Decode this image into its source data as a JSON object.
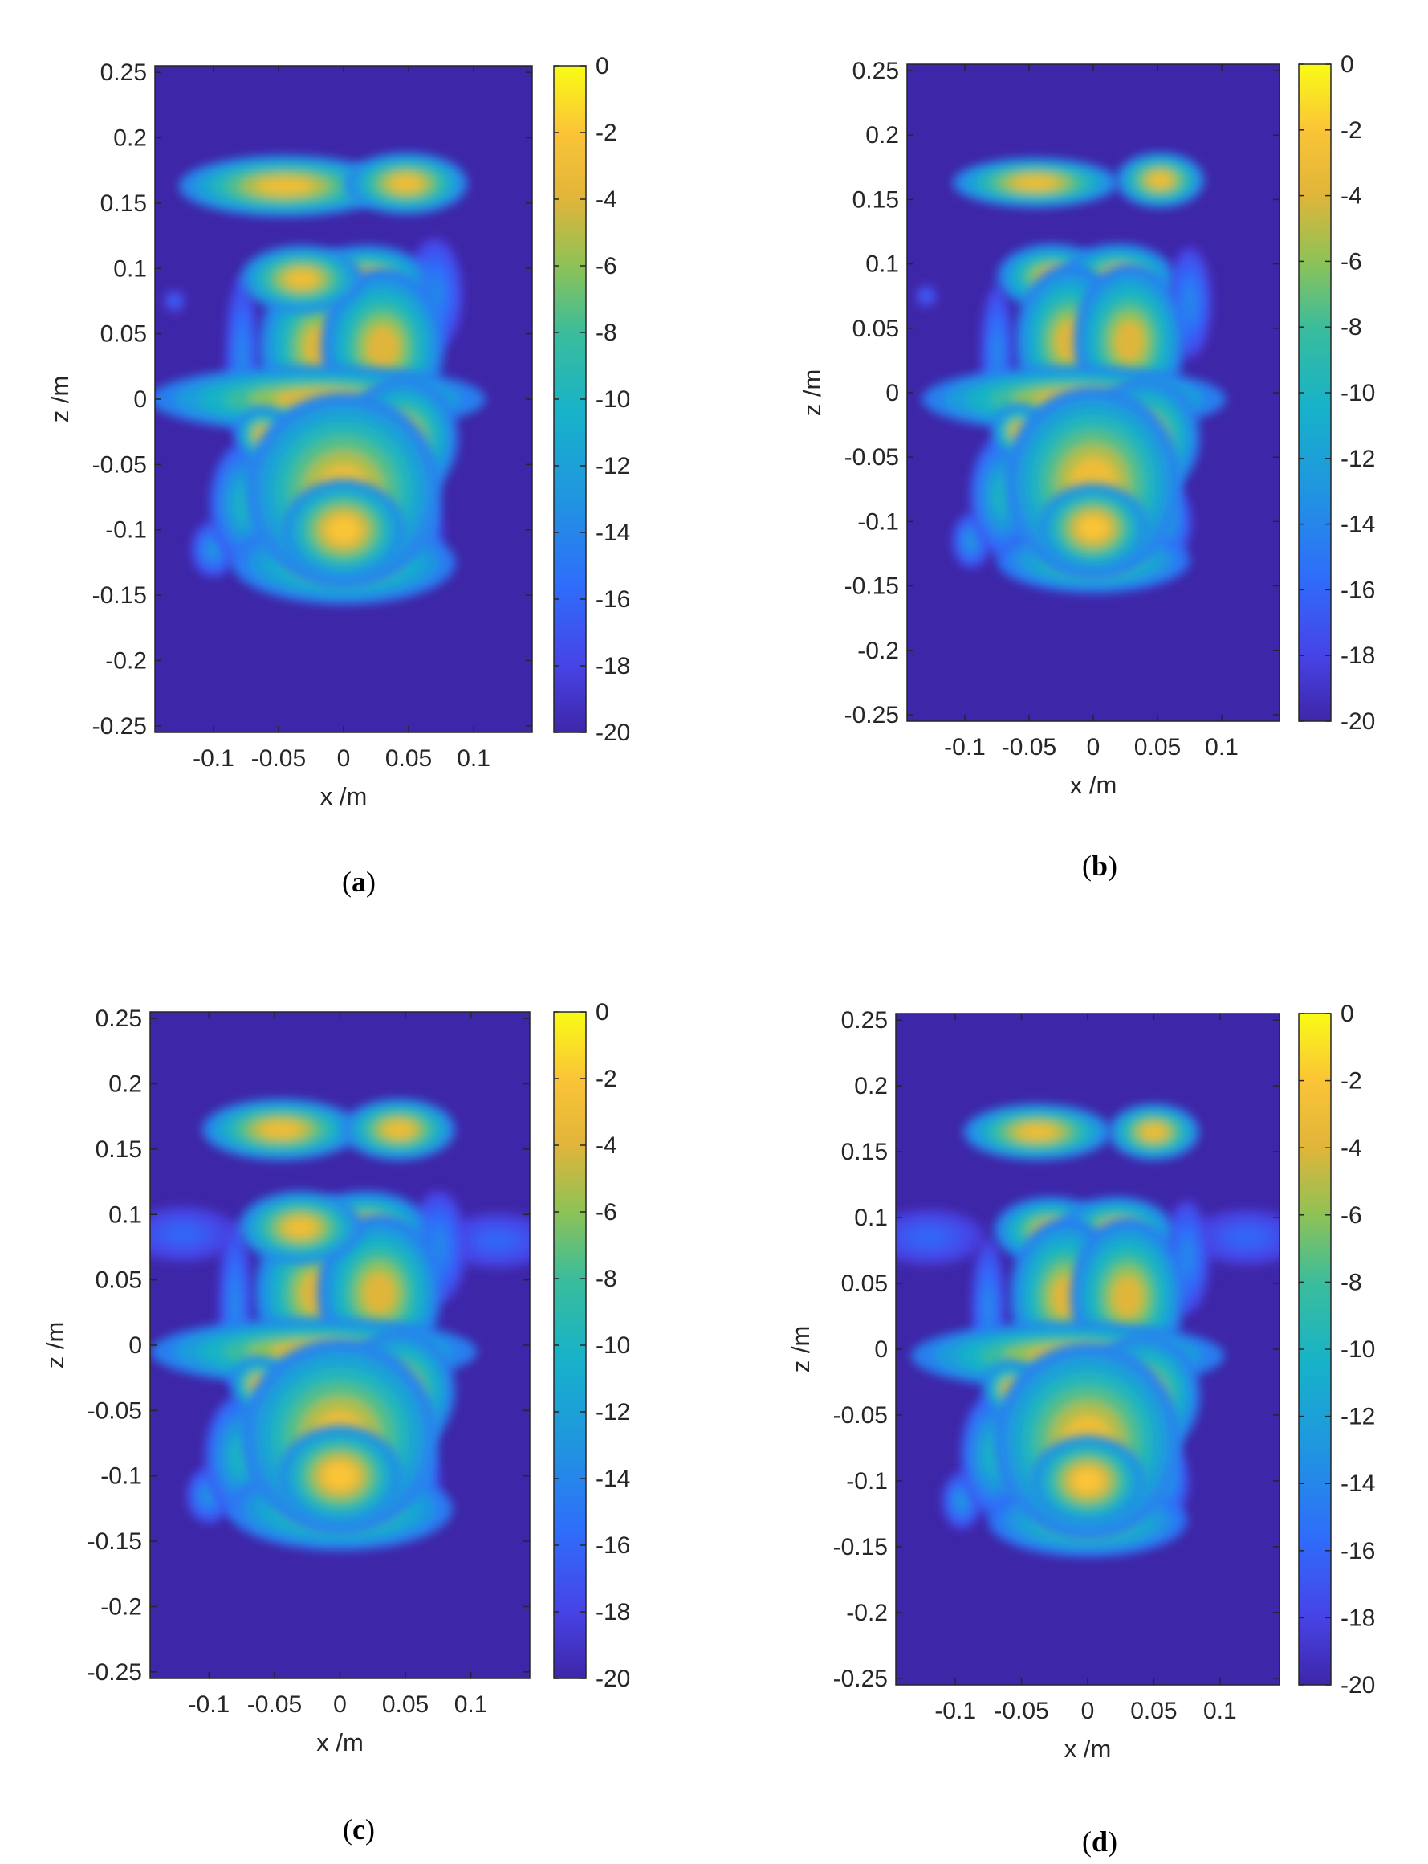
{
  "figure": {
    "panels": [
      {
        "caption_letter": "a"
      },
      {
        "caption_letter": "b"
      },
      {
        "caption_letter": "c"
      },
      {
        "caption_letter": "d"
      }
    ]
  },
  "chart_data": [
    {
      "type": "heatmap",
      "panel": "a",
      "xlabel": "x /m",
      "ylabel": "z /m",
      "xlim": [
        -0.145,
        0.145
      ],
      "ylim": [
        -0.255,
        0.255
      ],
      "x_ticks": [
        -0.1,
        -0.05,
        0,
        0.05,
        0.1
      ],
      "x_tick_labels": [
        "-0.1",
        "-0.05",
        "0",
        "0.05",
        "0.1"
      ],
      "y_ticks": [
        0.25,
        0.2,
        0.15,
        0.1,
        0.05,
        0,
        -0.05,
        -0.1,
        -0.15,
        -0.2,
        -0.25
      ],
      "y_tick_labels": [
        "0.25",
        "0.2",
        "0.15",
        "0.1",
        "0.05",
        "0",
        "-0.05",
        "-0.1",
        "-0.15",
        "-0.2",
        "-0.25"
      ],
      "colorbar": {
        "range": [
          -20,
          0
        ],
        "ticks": [
          0,
          -2,
          -4,
          -6,
          -8,
          -10,
          -12,
          -14,
          -16,
          -18,
          -20
        ],
        "tick_labels": [
          "0",
          "-2",
          "-4",
          "-6",
          "-8",
          "-10",
          "-12",
          "-14",
          "-16",
          "-18",
          "-20"
        ],
        "colormap": "parula"
      },
      "background_value": -20,
      "blobs": [
        {
          "x": -0.045,
          "z": 0.163,
          "sx": 0.038,
          "sz": 0.011,
          "level": -3
        },
        {
          "x": 0.048,
          "z": 0.165,
          "sx": 0.022,
          "sz": 0.011,
          "level": -3
        },
        {
          "x": -0.032,
          "z": 0.092,
          "sx": 0.022,
          "sz": 0.012,
          "level": -3
        },
        {
          "x": 0.018,
          "z": 0.092,
          "sx": 0.022,
          "sz": 0.012,
          "level": -4
        },
        {
          "x": -0.018,
          "z": 0.04,
          "sx": 0.022,
          "sz": 0.028,
          "level": -4
        },
        {
          "x": 0.03,
          "z": 0.04,
          "sx": 0.022,
          "sz": 0.028,
          "level": -4
        },
        {
          "x": -0.02,
          "z": 0.0,
          "sx": 0.06,
          "sz": 0.012,
          "level": -4
        },
        {
          "x": -0.062,
          "z": -0.027,
          "sx": 0.01,
          "sz": 0.01,
          "level": -4
        },
        {
          "x": 0.0,
          "z": -0.07,
          "sx": 0.035,
          "sz": 0.035,
          "level": -3
        },
        {
          "x": 0.045,
          "z": -0.03,
          "sx": 0.02,
          "sz": 0.022,
          "level": -4
        },
        {
          "x": 0.0,
          "z": -0.1,
          "sx": 0.022,
          "sz": 0.018,
          "level": -2
        },
        {
          "x": 0.0,
          "z": -0.125,
          "sx": 0.04,
          "sz": 0.015,
          "level": -5
        },
        {
          "x": -0.075,
          "z": -0.08,
          "sx": 0.013,
          "sz": 0.022,
          "level": -10
        },
        {
          "x": -0.1,
          "z": -0.115,
          "sx": 0.008,
          "sz": 0.01,
          "level": -13
        },
        {
          "x": -0.078,
          "z": 0.03,
          "sx": 0.006,
          "sz": 0.03,
          "level": -14
        },
        {
          "x": -0.13,
          "z": 0.075,
          "sx": 0.004,
          "sz": 0.004,
          "level": -16
        },
        {
          "x": 0.07,
          "z": 0.08,
          "sx": 0.01,
          "sz": 0.02,
          "level": -14
        },
        {
          "x": 0.055,
          "z": -0.1,
          "sx": 0.01,
          "sz": 0.015,
          "level": -12
        }
      ]
    },
    {
      "type": "heatmap",
      "panel": "b",
      "xlabel": "x /m",
      "ylabel": "z /m",
      "xlim": [
        -0.145,
        0.145
      ],
      "ylim": [
        -0.255,
        0.255
      ],
      "x_ticks": [
        -0.1,
        -0.05,
        0,
        0.05,
        0.1
      ],
      "x_tick_labels": [
        "-0.1",
        "-0.05",
        "0",
        "0.05",
        "0.1"
      ],
      "y_ticks": [
        0.25,
        0.2,
        0.15,
        0.1,
        0.05,
        0,
        -0.05,
        -0.1,
        -0.15,
        -0.2,
        -0.25
      ],
      "y_tick_labels": [
        "0.25",
        "0.2",
        "0.15",
        "0.1",
        "0.05",
        "0",
        "-0.05",
        "-0.1",
        "-0.15",
        "-0.2",
        "-0.25"
      ],
      "colorbar": {
        "range": [
          -20,
          0
        ],
        "ticks": [
          0,
          -2,
          -4,
          -6,
          -8,
          -10,
          -12,
          -14,
          -16,
          -18,
          -20
        ],
        "tick_labels": [
          "0",
          "-2",
          "-4",
          "-6",
          "-8",
          "-10",
          "-12",
          "-14",
          "-16",
          "-18",
          "-20"
        ],
        "colormap": "parula"
      },
      "background_value": -20,
      "blobs": [
        {
          "x": -0.045,
          "z": 0.163,
          "sx": 0.03,
          "sz": 0.009,
          "level": -3
        },
        {
          "x": 0.052,
          "z": 0.165,
          "sx": 0.016,
          "sz": 0.01,
          "level": -3
        },
        {
          "x": -0.032,
          "z": 0.09,
          "sx": 0.02,
          "sz": 0.012,
          "level": -4
        },
        {
          "x": 0.02,
          "z": 0.09,
          "sx": 0.02,
          "sz": 0.012,
          "level": -4
        },
        {
          "x": -0.018,
          "z": 0.04,
          "sx": 0.02,
          "sz": 0.028,
          "level": -4
        },
        {
          "x": 0.028,
          "z": 0.04,
          "sx": 0.02,
          "sz": 0.028,
          "level": -4
        },
        {
          "x": -0.015,
          "z": -0.005,
          "sx": 0.055,
          "sz": 0.012,
          "level": -4
        },
        {
          "x": -0.058,
          "z": -0.03,
          "sx": 0.01,
          "sz": 0.01,
          "level": -4
        },
        {
          "x": 0.0,
          "z": -0.07,
          "sx": 0.032,
          "sz": 0.035,
          "level": -3
        },
        {
          "x": 0.04,
          "z": -0.035,
          "sx": 0.02,
          "sz": 0.022,
          "level": -4
        },
        {
          "x": 0.0,
          "z": -0.105,
          "sx": 0.02,
          "sz": 0.016,
          "level": -2
        },
        {
          "x": 0.0,
          "z": -0.13,
          "sx": 0.035,
          "sz": 0.012,
          "level": -6
        },
        {
          "x": -0.07,
          "z": -0.08,
          "sx": 0.012,
          "sz": 0.022,
          "level": -10
        },
        {
          "x": -0.095,
          "z": -0.115,
          "sx": 0.007,
          "sz": 0.01,
          "level": -13
        },
        {
          "x": -0.075,
          "z": 0.03,
          "sx": 0.006,
          "sz": 0.025,
          "level": -14
        },
        {
          "x": -0.13,
          "z": 0.075,
          "sx": 0.004,
          "sz": 0.004,
          "level": -16
        },
        {
          "x": 0.075,
          "z": 0.07,
          "sx": 0.008,
          "sz": 0.02,
          "level": -14
        },
        {
          "x": 0.055,
          "z": -0.1,
          "sx": 0.01,
          "sz": 0.015,
          "level": -12
        }
      ]
    },
    {
      "type": "heatmap",
      "panel": "c",
      "xlabel": "x /m",
      "ylabel": "z /m",
      "xlim": [
        -0.145,
        0.145
      ],
      "ylim": [
        -0.255,
        0.255
      ],
      "x_ticks": [
        -0.1,
        -0.05,
        0,
        0.05,
        0.1
      ],
      "x_tick_labels": [
        "-0.1",
        "-0.05",
        "0",
        "0.05",
        "0.1"
      ],
      "y_ticks": [
        0.25,
        0.2,
        0.15,
        0.1,
        0.05,
        0,
        -0.05,
        -0.1,
        -0.15,
        -0.2,
        -0.25
      ],
      "y_tick_labels": [
        "0.25",
        "0.2",
        "0.15",
        "0.1",
        "0.05",
        "0",
        "-0.05",
        "-0.1",
        "-0.15",
        "-0.2",
        "-0.25"
      ],
      "colorbar": {
        "range": [
          -20,
          0
        ],
        "ticks": [
          0,
          -2,
          -4,
          -6,
          -8,
          -10,
          -12,
          -14,
          -16,
          -18,
          -20
        ],
        "tick_labels": [
          "0",
          "-2",
          "-4",
          "-6",
          "-8",
          "-10",
          "-12",
          "-14",
          "-16",
          "-18",
          "-20"
        ],
        "colormap": "parula"
      },
      "background_value": -20,
      "blobs": [
        {
          "x": -0.045,
          "z": 0.165,
          "sx": 0.028,
          "sz": 0.011,
          "level": -3
        },
        {
          "x": 0.045,
          "z": 0.165,
          "sx": 0.02,
          "sz": 0.011,
          "level": -3
        },
        {
          "x": -0.03,
          "z": 0.09,
          "sx": 0.022,
          "sz": 0.013,
          "level": -3
        },
        {
          "x": 0.02,
          "z": 0.09,
          "sx": 0.022,
          "sz": 0.013,
          "level": -4
        },
        {
          "x": -0.018,
          "z": 0.04,
          "sx": 0.022,
          "sz": 0.028,
          "level": -4
        },
        {
          "x": 0.03,
          "z": 0.04,
          "sx": 0.022,
          "sz": 0.028,
          "level": -4
        },
        {
          "x": -0.02,
          "z": -0.005,
          "sx": 0.058,
          "sz": 0.012,
          "level": -4
        },
        {
          "x": -0.062,
          "z": -0.03,
          "sx": 0.01,
          "sz": 0.01,
          "level": -4
        },
        {
          "x": 0.0,
          "z": -0.07,
          "sx": 0.035,
          "sz": 0.035,
          "level": -3
        },
        {
          "x": 0.045,
          "z": -0.035,
          "sx": 0.02,
          "sz": 0.022,
          "level": -4
        },
        {
          "x": 0.0,
          "z": -0.1,
          "sx": 0.022,
          "sz": 0.018,
          "level": -2
        },
        {
          "x": 0.0,
          "z": -0.125,
          "sx": 0.04,
          "sz": 0.015,
          "level": -5
        },
        {
          "x": -0.075,
          "z": -0.085,
          "sx": 0.013,
          "sz": 0.022,
          "level": -10
        },
        {
          "x": -0.1,
          "z": -0.115,
          "sx": 0.008,
          "sz": 0.01,
          "level": -13
        },
        {
          "x": -0.08,
          "z": 0.03,
          "sx": 0.006,
          "sz": 0.03,
          "level": -14
        },
        {
          "x": -0.12,
          "z": 0.085,
          "sx": 0.02,
          "sz": 0.01,
          "level": -16
        },
        {
          "x": 0.12,
          "z": 0.08,
          "sx": 0.02,
          "sz": 0.01,
          "level": -16
        },
        {
          "x": 0.075,
          "z": 0.075,
          "sx": 0.01,
          "sz": 0.02,
          "level": -14
        },
        {
          "x": 0.055,
          "z": -0.1,
          "sx": 0.01,
          "sz": 0.015,
          "level": -12
        }
      ]
    },
    {
      "type": "heatmap",
      "panel": "d",
      "xlabel": "x /m",
      "ylabel": "z /m",
      "xlim": [
        -0.145,
        0.145
      ],
      "ylim": [
        -0.255,
        0.255
      ],
      "x_ticks": [
        -0.1,
        -0.05,
        0,
        0.05,
        0.1
      ],
      "x_tick_labels": [
        "-0.1",
        "-0.05",
        "0",
        "0.05",
        "0.1"
      ],
      "y_ticks": [
        0.25,
        0.2,
        0.15,
        0.1,
        0.05,
        0,
        -0.05,
        -0.1,
        -0.15,
        -0.2,
        -0.25
      ],
      "y_tick_labels": [
        "0.25",
        "0.2",
        "0.15",
        "0.1",
        "0.05",
        "0",
        "-0.05",
        "-0.1",
        "-0.15",
        "-0.2",
        "-0.25"
      ],
      "colorbar": {
        "range": [
          -20,
          0
        ],
        "ticks": [
          0,
          -2,
          -4,
          -6,
          -8,
          -10,
          -12,
          -14,
          -16,
          -18,
          -20
        ],
        "tick_labels": [
          "0",
          "-2",
          "-4",
          "-6",
          "-8",
          "-10",
          "-12",
          "-14",
          "-16",
          "-18",
          "-20"
        ],
        "colormap": "parula"
      },
      "background_value": -20,
      "blobs": [
        {
          "x": -0.038,
          "z": 0.165,
          "sx": 0.026,
          "sz": 0.01,
          "level": -3
        },
        {
          "x": 0.05,
          "z": 0.165,
          "sx": 0.016,
          "sz": 0.01,
          "level": -3
        },
        {
          "x": -0.028,
          "z": 0.09,
          "sx": 0.02,
          "sz": 0.012,
          "level": -4
        },
        {
          "x": 0.022,
          "z": 0.09,
          "sx": 0.02,
          "sz": 0.012,
          "level": -4
        },
        {
          "x": -0.016,
          "z": 0.04,
          "sx": 0.02,
          "sz": 0.028,
          "level": -4
        },
        {
          "x": 0.03,
          "z": 0.04,
          "sx": 0.02,
          "sz": 0.028,
          "level": -4
        },
        {
          "x": -0.015,
          "z": -0.005,
          "sx": 0.055,
          "sz": 0.012,
          "level": -4
        },
        {
          "x": -0.058,
          "z": -0.03,
          "sx": 0.01,
          "sz": 0.01,
          "level": -4
        },
        {
          "x": 0.0,
          "z": -0.07,
          "sx": 0.033,
          "sz": 0.035,
          "level": -3
        },
        {
          "x": 0.042,
          "z": -0.035,
          "sx": 0.02,
          "sz": 0.022,
          "level": -4
        },
        {
          "x": 0.0,
          "z": -0.1,
          "sx": 0.02,
          "sz": 0.016,
          "level": -2
        },
        {
          "x": 0.0,
          "z": -0.13,
          "sx": 0.035,
          "sz": 0.013,
          "level": -6
        },
        {
          "x": -0.07,
          "z": -0.08,
          "sx": 0.012,
          "sz": 0.022,
          "level": -10
        },
        {
          "x": -0.095,
          "z": -0.115,
          "sx": 0.007,
          "sz": 0.01,
          "level": -13
        },
        {
          "x": -0.075,
          "z": 0.03,
          "sx": 0.006,
          "sz": 0.025,
          "level": -14
        },
        {
          "x": -0.12,
          "z": 0.085,
          "sx": 0.02,
          "sz": 0.01,
          "level": -16
        },
        {
          "x": 0.12,
          "z": 0.085,
          "sx": 0.02,
          "sz": 0.01,
          "level": -16
        },
        {
          "x": 0.075,
          "z": 0.07,
          "sx": 0.008,
          "sz": 0.02,
          "level": -14
        },
        {
          "x": 0.055,
          "z": -0.1,
          "sx": 0.01,
          "sz": 0.015,
          "level": -12
        }
      ]
    }
  ]
}
